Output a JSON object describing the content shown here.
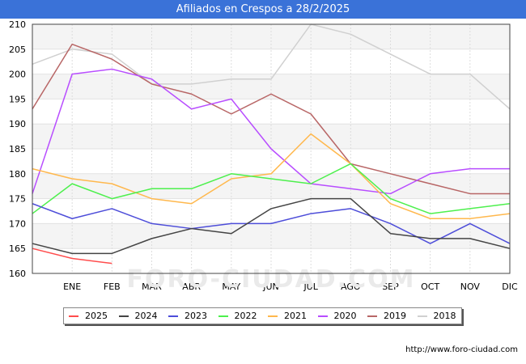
{
  "header": {
    "title": "Afiliados en Crespos a 28/2/2025"
  },
  "footer": {
    "source": "http://www.foro-ciudad.com"
  },
  "watermark": "FORO-CIUDAD.COM",
  "chart_data": {
    "type": "line",
    "title": "Afiliados en Crespos a 28/2/2025",
    "xlabel": "",
    "ylabel": "",
    "x_ticks": [
      "ENE",
      "FEB",
      "MAR",
      "ABR",
      "MAY",
      "JUN",
      "JUL",
      "AGO",
      "SEP",
      "OCT",
      "NOV",
      "DIC"
    ],
    "x_positions": [
      0,
      1,
      2,
      3,
      4,
      5,
      6,
      7,
      8,
      9,
      10,
      11,
      12
    ],
    "x_range": [
      0,
      12
    ],
    "ylim": [
      160,
      210
    ],
    "y_ticks": [
      160,
      165,
      170,
      175,
      180,
      185,
      190,
      195,
      200,
      205,
      210
    ],
    "grid": "horizontal",
    "legend_position": "bottom",
    "series": [
      {
        "name": "2025",
        "color": "#ff4d4d",
        "values": [
          165,
          163,
          162
        ]
      },
      {
        "name": "2024",
        "color": "#444444",
        "values": [
          166,
          164,
          164,
          167,
          169,
          168,
          173,
          175,
          175,
          168,
          167,
          167,
          165
        ]
      },
      {
        "name": "2023",
        "color": "#4d4dd9",
        "values": [
          174,
          171,
          173,
          170,
          169,
          170,
          170,
          172,
          173,
          170,
          166,
          170,
          166
        ]
      },
      {
        "name": "2022",
        "color": "#4df04d",
        "values": [
          172,
          178,
          175,
          177,
          177,
          180,
          179,
          178,
          182,
          175,
          172,
          173,
          174
        ]
      },
      {
        "name": "2021",
        "color": "#ffb84d",
        "values": [
          181,
          179,
          178,
          175,
          174,
          179,
          180,
          188,
          182,
          174,
          171,
          171,
          172
        ]
      },
      {
        "name": "2020",
        "color": "#b84dff",
        "values": [
          176,
          200,
          201,
          199,
          193,
          195,
          185,
          178,
          177,
          176,
          180,
          181,
          181
        ]
      },
      {
        "name": "2019",
        "color": "#b86666",
        "values": [
          193,
          206,
          203,
          198,
          196,
          192,
          196,
          192,
          182,
          180,
          178,
          176,
          176
        ]
      },
      {
        "name": "2018",
        "color": "#d0d0d0",
        "values": [
          202,
          205,
          204,
          198,
          198,
          199,
          199,
          210,
          208,
          204,
          200,
          200,
          193
        ]
      }
    ]
  }
}
